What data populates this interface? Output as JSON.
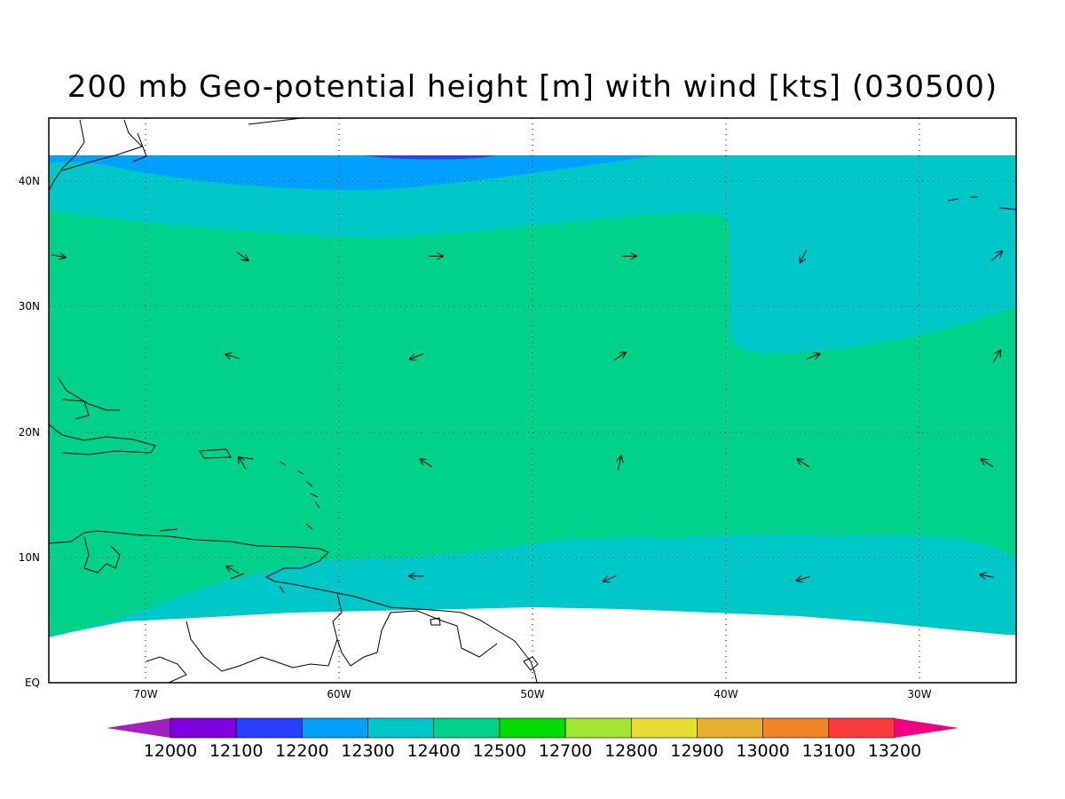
{
  "title": "200 mb Geo-potential height [m] with wind [kts] (030500)",
  "map": {
    "lon_range": [
      -75,
      -25
    ],
    "lat_range": [
      0,
      45
    ],
    "x_ticks": [
      "70W",
      "60W",
      "50W",
      "40W",
      "30W"
    ],
    "y_ticks": [
      "EQ",
      "10N",
      "20N",
      "30N",
      "40N"
    ],
    "gridlines": "dotted"
  },
  "colorbar": {
    "labels": [
      "12000",
      "12100",
      "12200",
      "12300",
      "12400",
      "12500",
      "12700",
      "12800",
      "12900",
      "13000",
      "13100",
      "13200"
    ],
    "colors": [
      "#a020c0",
      "#8000e0",
      "#2840ff",
      "#00a0ff",
      "#00c8c8",
      "#00d28c",
      "#00dc00",
      "#a0e632",
      "#e6dc32",
      "#e6af2d",
      "#f08228",
      "#fa3c3c",
      "#f00082"
    ]
  },
  "chart_data": {
    "type": "heatmap",
    "title": "200 mb Geo-potential height [m] with wind [kts] (030500)",
    "x_range": [
      -75,
      -25
    ],
    "y_range": [
      0,
      45
    ],
    "contour_levels": [
      12000,
      12100,
      12200,
      12300,
      12400,
      12500,
      12700,
      12800,
      12900,
      13000,
      13100,
      13200
    ],
    "field_bands_visible": [
      {
        "band": "12200-12300",
        "region": "northern edge near 42N, 60W-50W"
      },
      {
        "band": "12300-12400",
        "region": "north of ~38N and south of ~10N; also 40W-25W north of ~28N"
      },
      {
        "band": "12400-12500",
        "region": "central band ~10N to ~37N"
      }
    ],
    "wind_vectors": [
      {
        "lon": -74.5,
        "lat": 34,
        "u": 1,
        "v": -0.2
      },
      {
        "lon": -65,
        "lat": 34,
        "u": 0.8,
        "v": -0.6
      },
      {
        "lon": -55,
        "lat": 34,
        "u": 1,
        "v": 0
      },
      {
        "lon": -45,
        "lat": 34,
        "u": 1,
        "v": 0
      },
      {
        "lon": -36,
        "lat": 34,
        "u": -0.5,
        "v": -1
      },
      {
        "lon": -26,
        "lat": 34,
        "u": 0.8,
        "v": 0.7
      },
      {
        "lon": -65.5,
        "lat": 26,
        "u": -1,
        "v": 0.3
      },
      {
        "lon": -56,
        "lat": 26,
        "u": -1,
        "v": -0.4
      },
      {
        "lon": -45.5,
        "lat": 26,
        "u": 0.9,
        "v": 0.6
      },
      {
        "lon": -35.5,
        "lat": 26,
        "u": 1,
        "v": 0.4
      },
      {
        "lon": -26,
        "lat": 26,
        "u": 0.6,
        "v": 1
      },
      {
        "lon": -65,
        "lat": 17.5,
        "u": -0.6,
        "v": 1
      },
      {
        "lon": -55.5,
        "lat": 17.5,
        "u": -0.9,
        "v": 0.6
      },
      {
        "lon": -45.5,
        "lat": 17.5,
        "u": 0.2,
        "v": 1
      },
      {
        "lon": -36,
        "lat": 17.5,
        "u": -0.9,
        "v": 0.6
      },
      {
        "lon": -26.5,
        "lat": 17.5,
        "u": -0.8,
        "v": 0.5
      },
      {
        "lon": -65.5,
        "lat": 9,
        "u": -0.9,
        "v": 0.5
      },
      {
        "lon": -56,
        "lat": 8.5,
        "u": -1,
        "v": 0
      },
      {
        "lon": -46,
        "lat": 8.3,
        "u": -0.9,
        "v": -0.4
      },
      {
        "lon": -36,
        "lat": 8.3,
        "u": -1,
        "v": -0.3
      },
      {
        "lon": -26.5,
        "lat": 8.5,
        "u": -1,
        "v": 0.2
      }
    ]
  }
}
